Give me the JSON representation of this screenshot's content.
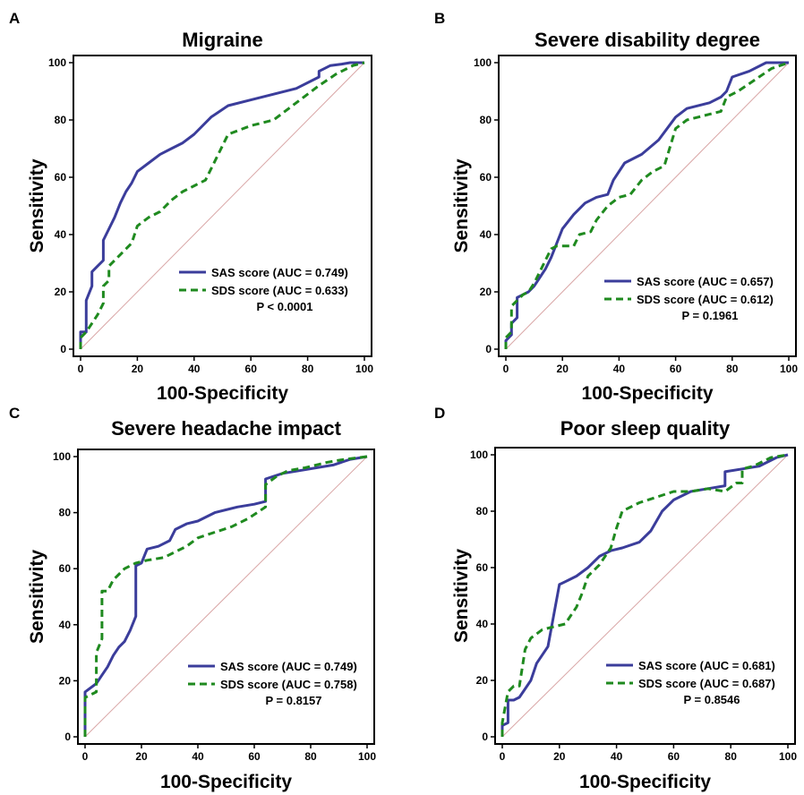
{
  "chart_data": [
    {
      "panel_label": "A",
      "type": "line",
      "title": "Migraine",
      "xlabel": "100-Specificity",
      "ylabel": "Sensitivity",
      "xlim": [
        0,
        100
      ],
      "ylim": [
        0,
        100
      ],
      "xticks": [
        0,
        20,
        40,
        60,
        80,
        100
      ],
      "yticks": [
        0,
        20,
        40,
        60,
        80,
        100
      ],
      "grid": false,
      "legend_position": "bottom-right",
      "reference_line": true,
      "series": [
        {
          "name": "SAS score (AUC = 0.749)",
          "color": "#3b3d9b",
          "dash": "solid",
          "x": [
            0,
            0,
            2,
            2,
            4,
            4,
            6,
            8,
            8,
            10,
            12,
            14,
            16,
            18,
            20,
            24,
            28,
            32,
            36,
            40,
            46,
            52,
            60,
            68,
            76,
            84,
            84,
            86,
            88,
            92,
            95,
            98,
            100
          ],
          "y": [
            0,
            6,
            6,
            17,
            22,
            27,
            29,
            31,
            38,
            42,
            46,
            51,
            55,
            58,
            62,
            65,
            68,
            70,
            72,
            75,
            81,
            85,
            87,
            89,
            91,
            95,
            97,
            98,
            99,
            99.5,
            100,
            100,
            100
          ]
        },
        {
          "name": "SDS score (AUC = 0.633)",
          "color": "#1f8a1f",
          "dash": "dashed",
          "x": [
            0,
            0,
            2,
            4,
            6,
            8,
            8,
            10,
            10,
            14,
            18,
            20,
            24,
            28,
            32,
            36,
            40,
            44,
            48,
            52,
            60,
            68,
            76,
            84,
            90,
            96,
            100
          ],
          "y": [
            0,
            4,
            6,
            9,
            12,
            16,
            22,
            24,
            29,
            33,
            37,
            43,
            46,
            48,
            52,
            55,
            57,
            59,
            67,
            75,
            78,
            80,
            86,
            92,
            96,
            99,
            100
          ]
        }
      ],
      "annotations": [
        "P < 0.0001"
      ]
    },
    {
      "panel_label": "B",
      "type": "line",
      "title": "Severe disability degree",
      "xlabel": "100-Specificity",
      "ylabel": "Sensitivity",
      "xlim": [
        0,
        100
      ],
      "ylim": [
        0,
        100
      ],
      "xticks": [
        0,
        20,
        40,
        60,
        80,
        "100"
      ],
      "yticks": [
        0,
        20,
        40,
        60,
        80,
        100
      ],
      "grid": false,
      "legend_position": "bottom-right",
      "reference_line": true,
      "series": [
        {
          "name": "SAS score (AUC = 0.657)",
          "color": "#3b3d9b",
          "dash": "solid",
          "x": [
            0,
            0,
            2,
            2,
            4,
            4,
            6,
            8,
            10,
            12,
            14,
            16,
            18,
            20,
            24,
            28,
            32,
            36,
            38,
            42,
            48,
            54,
            60,
            64,
            72,
            76,
            78,
            80,
            86,
            92,
            98,
            100
          ],
          "y": [
            0,
            3,
            5,
            9,
            11,
            18,
            19,
            20,
            22,
            25,
            28,
            32,
            37,
            42,
            47,
            51,
            53,
            54,
            59,
            65,
            68,
            73,
            81,
            84,
            86,
            88,
            90,
            95,
            97,
            100,
            100,
            100
          ]
        },
        {
          "name": "SDS score (AUC = 0.612)",
          "color": "#1f8a1f",
          "dash": "dashed",
          "x": [
            0,
            0,
            2,
            2,
            4,
            6,
            8,
            10,
            12,
            14,
            16,
            18,
            20,
            24,
            26,
            30,
            32,
            36,
            40,
            44,
            48,
            52,
            56,
            60,
            64,
            68,
            72,
            76,
            78,
            82,
            88,
            94,
            100
          ],
          "y": [
            0,
            4,
            6,
            15,
            17,
            19,
            20,
            23,
            27,
            31,
            35,
            36,
            36,
            36,
            40,
            41,
            45,
            50,
            53,
            54,
            59,
            62,
            64,
            77,
            80,
            81,
            82,
            83,
            88,
            90,
            94,
            98,
            100
          ]
        }
      ],
      "annotations": [
        "P = 0.1961"
      ]
    },
    {
      "panel_label": "C",
      "type": "line",
      "title": "Severe headache impact",
      "xlabel": "100-Specificity",
      "ylabel": "Sensitivity",
      "xlim": [
        0,
        100
      ],
      "ylim": [
        0,
        100
      ],
      "xticks": [
        0,
        20,
        40,
        60,
        80,
        100
      ],
      "yticks": [
        0,
        20,
        40,
        60,
        80,
        100
      ],
      "grid": false,
      "legend_position": "bottom-right",
      "reference_line": true,
      "series": [
        {
          "name": "SAS score (AUC = 0.749)",
          "color": "#3b3d9b",
          "dash": "solid",
          "x": [
            0,
            0,
            4,
            6,
            8,
            10,
            12,
            14,
            16,
            18,
            18,
            20,
            22,
            26,
            30,
            32,
            36,
            40,
            46,
            54,
            60,
            64,
            64,
            70,
            76,
            82,
            88,
            94,
            100
          ],
          "y": [
            0,
            16,
            19,
            22,
            25,
            29,
            32,
            34,
            38,
            43,
            61,
            62,
            67,
            68,
            70,
            74,
            76,
            77,
            80,
            82,
            83,
            84,
            92,
            94,
            95,
            96,
            97,
            99,
            100
          ]
        },
        {
          "name": "SDS score (AUC = 0.758)",
          "color": "#1f8a1f",
          "dash": "dashed",
          "x": [
            0,
            0,
            2,
            4,
            4,
            6,
            6,
            8,
            10,
            12,
            14,
            18,
            22,
            28,
            32,
            36,
            40,
            46,
            52,
            58,
            64,
            64,
            68,
            72,
            78,
            86,
            92,
            100
          ],
          "y": [
            0,
            14,
            15,
            16,
            30,
            35,
            52,
            52,
            56,
            58,
            60,
            62,
            63,
            64,
            66,
            68,
            71,
            73,
            75,
            78,
            82,
            90,
            93,
            95,
            96,
            98,
            99,
            100
          ]
        }
      ],
      "annotations": [
        "P = 0.8157"
      ]
    },
    {
      "panel_label": "D",
      "type": "line",
      "title": "Poor sleep quality",
      "xlabel": "100-Specificity",
      "ylabel": "Sensitivity",
      "xlim": [
        0,
        100
      ],
      "ylim": [
        0,
        100
      ],
      "xticks": [
        0,
        20,
        40,
        60,
        80,
        100
      ],
      "yticks": [
        0,
        20,
        40,
        60,
        80,
        100
      ],
      "grid": false,
      "legend_position": "bottom-right",
      "reference_line": true,
      "series": [
        {
          "name": "SAS score (AUC = 0.681)",
          "color": "#3b3d9b",
          "dash": "solid",
          "x": [
            0,
            0,
            2,
            2,
            4,
            6,
            8,
            10,
            12,
            16,
            18,
            20,
            22,
            26,
            30,
            34,
            38,
            42,
            48,
            52,
            56,
            60,
            66,
            72,
            78,
            78,
            84,
            90,
            96,
            100
          ],
          "y": [
            0,
            4,
            5,
            13,
            13,
            14,
            17,
            20,
            26,
            32,
            43,
            54,
            55,
            57,
            60,
            64,
            66,
            67,
            69,
            73,
            80,
            84,
            87,
            88,
            89,
            94,
            95,
            96,
            99,
            100
          ]
        },
        {
          "name": "SDS score (AUC = 0.687)",
          "color": "#1f8a1f",
          "dash": "dashed",
          "x": [
            0,
            0,
            2,
            4,
            6,
            8,
            10,
            14,
            18,
            22,
            26,
            28,
            30,
            34,
            38,
            40,
            42,
            48,
            54,
            60,
            66,
            72,
            78,
            82,
            84,
            84,
            88,
            94,
            100
          ],
          "y": [
            0,
            5,
            16,
            18,
            18,
            31,
            35,
            38,
            39,
            40,
            46,
            51,
            57,
            61,
            67,
            74,
            80,
            83,
            85,
            87,
            87,
            88,
            87,
            90,
            90,
            95,
            96,
            99,
            100
          ]
        }
      ],
      "annotations": [
        "P = 0.8546"
      ]
    }
  ]
}
